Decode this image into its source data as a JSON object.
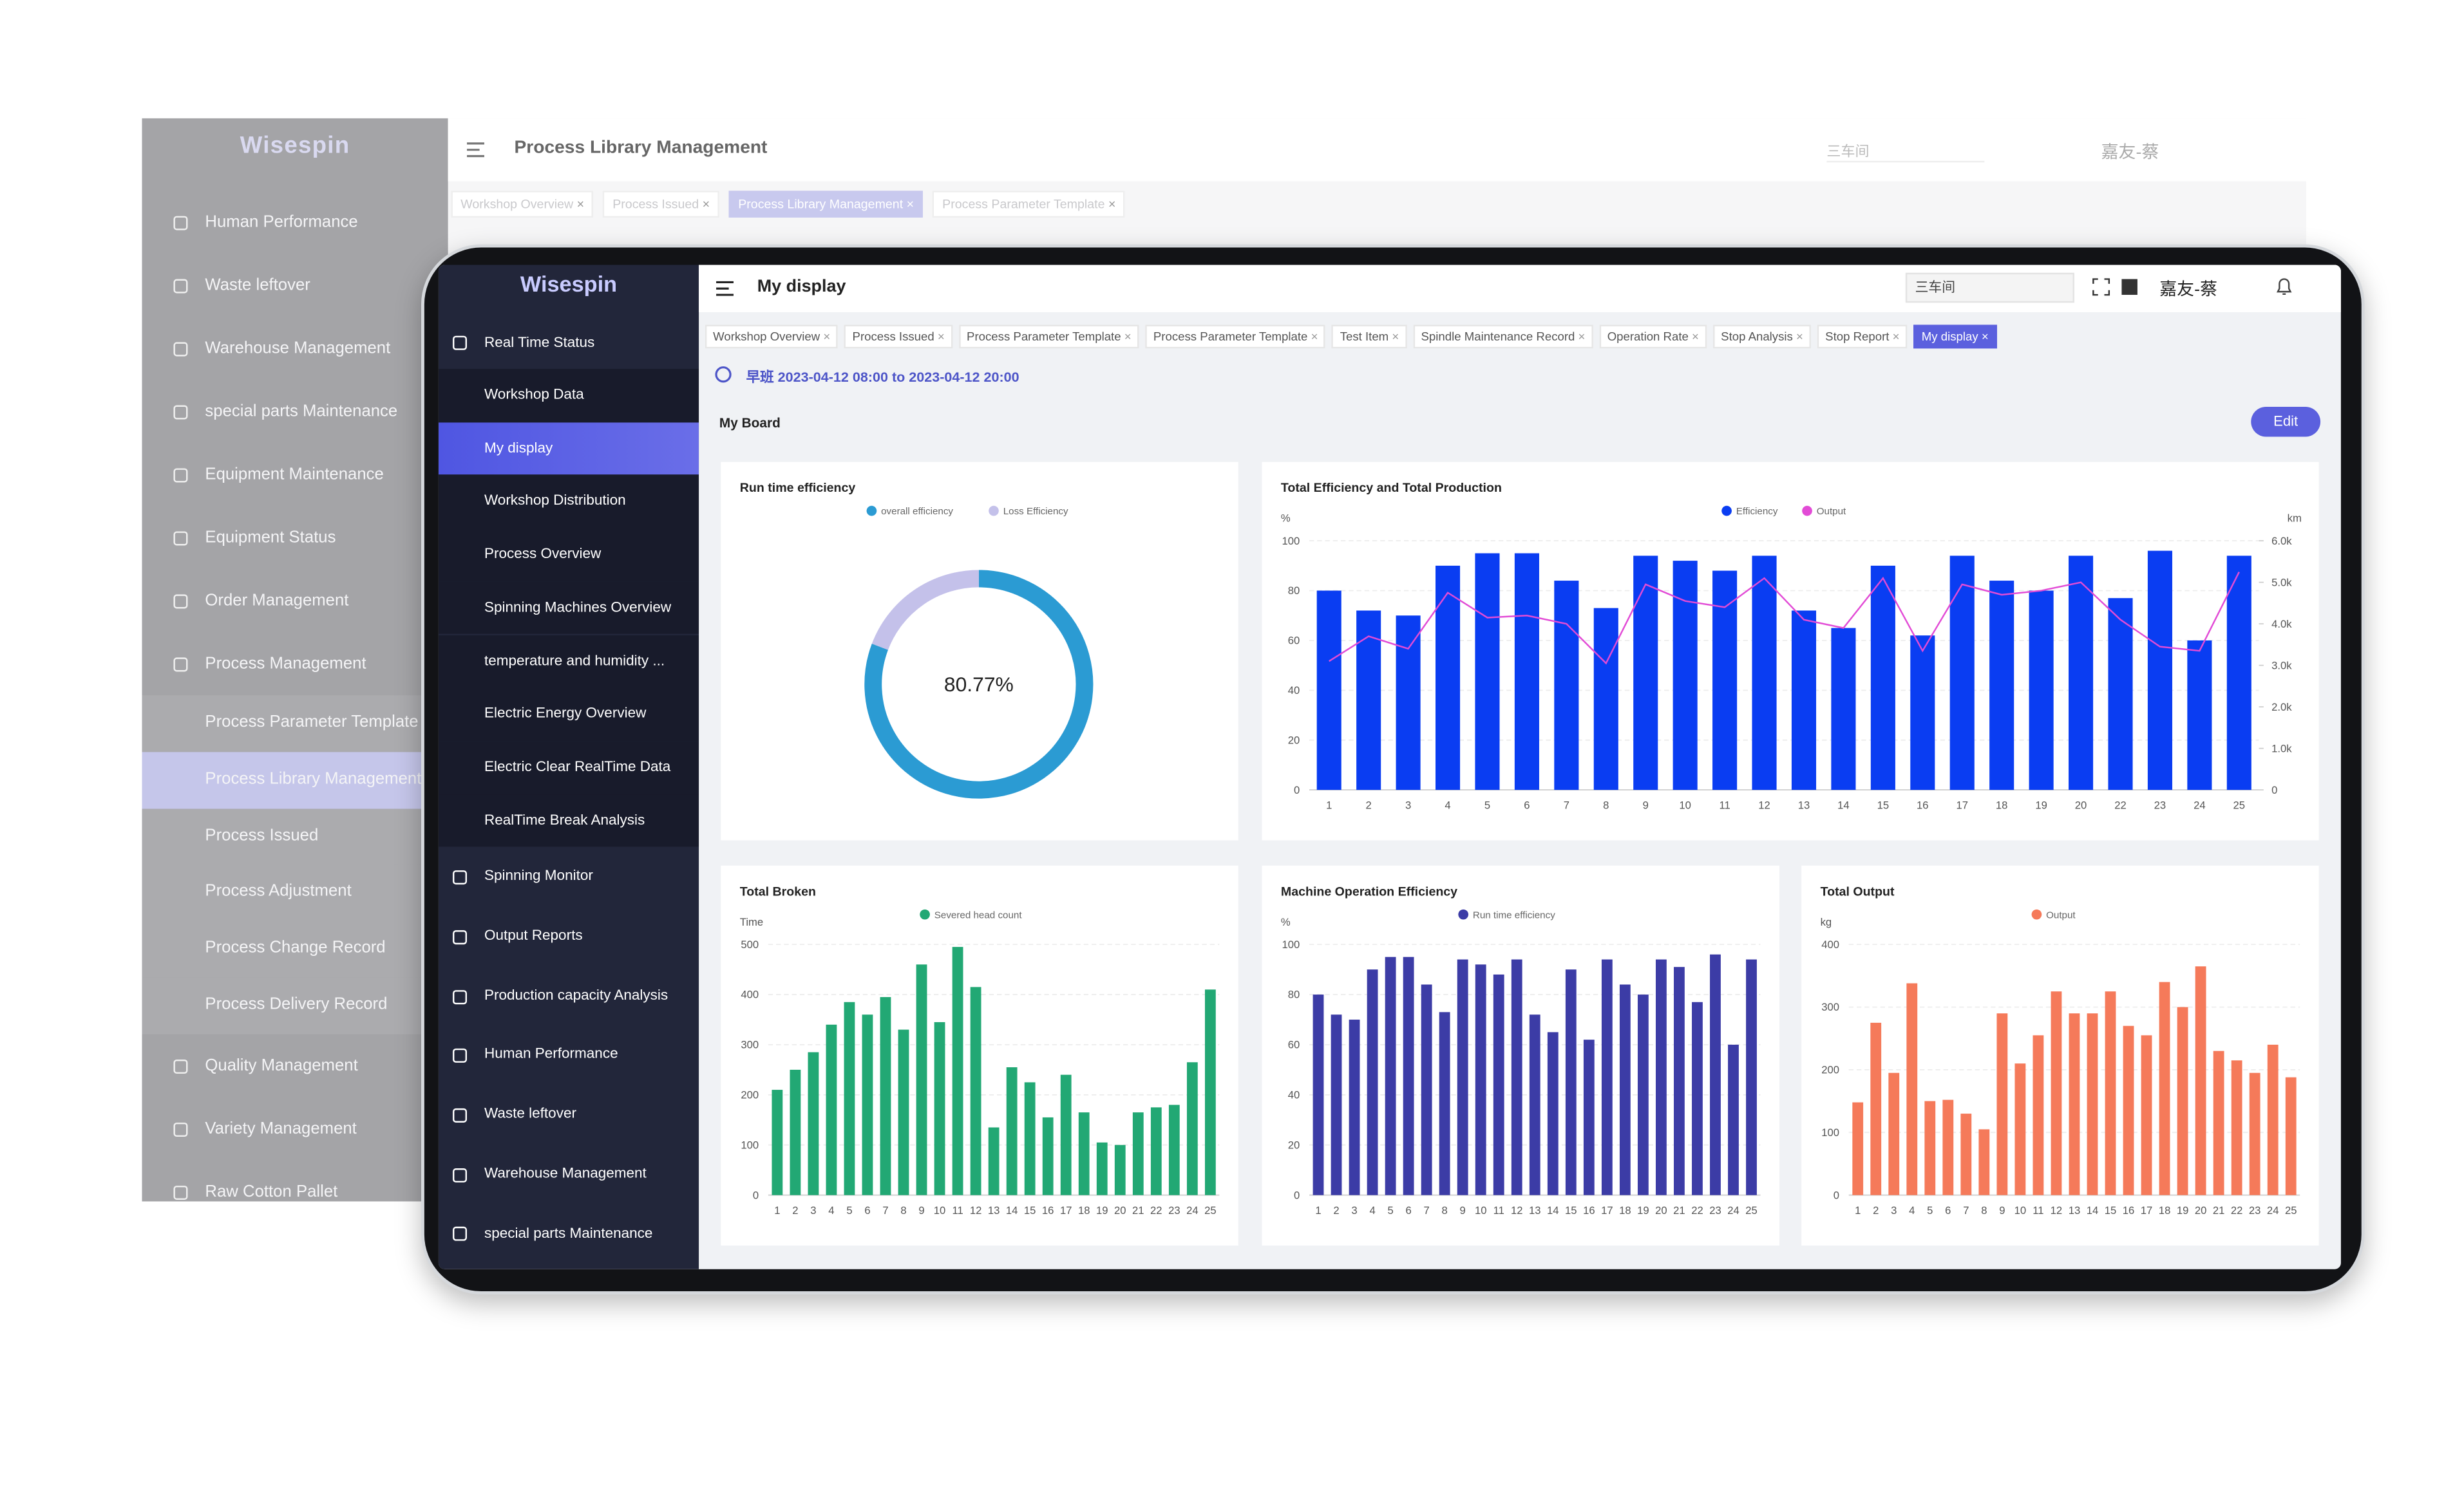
{
  "background_window": {
    "logo": "Wisespin",
    "header_title": "Process Library Management",
    "workshop": "三车间",
    "user": "嘉友-蔡",
    "active_tab": 2,
    "tabs": [
      "Workshop Overview",
      "Process Issued",
      "Process Library Management",
      "Process Parameter Template"
    ],
    "sidebar": [
      {
        "label": "Human Performance"
      },
      {
        "label": "Waste leftover"
      },
      {
        "label": "Warehouse Management"
      },
      {
        "label": "special parts Maintenance"
      },
      {
        "label": "Equipment Maintenance"
      },
      {
        "label": "Equipment Status"
      },
      {
        "label": "Order Management"
      },
      {
        "label": "Process Management",
        "active_child": 1,
        "children": [
          "Process Parameter Template",
          "Process Library Management",
          "Process Issued",
          "Process Adjustment",
          "Process Change Record",
          "Process Delivery Record"
        ]
      },
      {
        "label": "Quality Management"
      },
      {
        "label": "Variety Management"
      },
      {
        "label": "Raw Cotton Pallet"
      }
    ]
  },
  "front_window": {
    "logo": "Wisespin",
    "header_title": "My display",
    "workshop": "三车间",
    "user": "嘉友-蔡",
    "active_tab": 9,
    "tabs": [
      "Workshop Overview",
      "Process Issued",
      "Process Parameter Template",
      "Process Parameter Template",
      "Test Item",
      "Spindle Maintenance Record",
      "Operation Rate",
      "Stop Analysis",
      "Stop Report",
      "My display"
    ],
    "shift": "早班 2023-04-12 08:00 to 2023-04-12 20:00",
    "board_title": "My Board",
    "edit_button": "Edit",
    "sidebar": [
      {
        "label": "Real Time Status",
        "active_child": 1,
        "children": [
          "Workshop Data",
          "My display",
          "Workshop Distribution",
          "Process Overview",
          "Spinning Machines Overview",
          "temperature and humidity ...",
          "Electric Energy Overview",
          "Electric Clear RealTime Data",
          "RealTime Break Analysis"
        ]
      },
      {
        "label": "Spinning Monitor"
      },
      {
        "label": "Output Reports"
      },
      {
        "label": "Production capacity Analysis"
      },
      {
        "label": "Human Performance"
      },
      {
        "label": "Waste leftover"
      },
      {
        "label": "Warehouse Management"
      },
      {
        "label": "special parts Maintenance"
      }
    ],
    "charts": [
      {
        "type": "donut",
        "title": "Run time efficiency",
        "categories": [
          "overall efficiency",
          "Loss Efficiency"
        ],
        "values": [
          80.77,
          19.23
        ],
        "value_labels": [
          "80.77%",
          null
        ],
        "colors": [
          "#2b9bd3",
          "#c4c1ea"
        ]
      },
      {
        "type": "bar",
        "title": "Total Efficiency and Total Production",
        "y_unit": "%",
        "y2_unit": "km",
        "categories": [
          "1",
          "2",
          "3",
          "4",
          "5",
          "6",
          "7",
          "8",
          "9",
          "10",
          "11",
          "12",
          "13",
          "14",
          "15",
          "16",
          "17",
          "18",
          "19",
          "20",
          "22",
          "23",
          "24",
          "25"
        ],
        "series": [
          {
            "name": "Efficiency",
            "color": "#0a3df2",
            "values": [
              80,
              72,
              70,
              90,
              95,
              95,
              84,
              73,
              94,
              92,
              88,
              94,
              72,
              65,
              90,
              62,
              94,
              84,
              80,
              94,
              77,
              96,
              60,
              94
            ]
          },
          {
            "name": "Output",
            "color": "#e24bd6",
            "axis": "y2",
            "type": "line",
            "values": [
              3100,
              3700,
              3400,
              4750,
              4150,
              4200,
              4000,
              3050,
              4950,
              4550,
              4400,
              5100,
              4100,
              3900,
              5100,
              3350,
              4950,
              4700,
              4800,
              5000,
              4100,
              3450,
              3350,
              5250
            ]
          }
        ],
        "ylim": [
          0,
          100
        ],
        "yticks": [
          0,
          20,
          40,
          60,
          80,
          100
        ],
        "y2lim": [
          0,
          6000
        ],
        "y2ticks": [
          0,
          {
            "value": 1000,
            "label": "1.0k"
          },
          {
            "value": 2000,
            "label": "2.0k"
          },
          {
            "value": 3000,
            "label": "3.0k"
          },
          {
            "value": 4000,
            "label": "4.0k"
          },
          {
            "value": 5000,
            "label": "5.0k"
          },
          {
            "value": 6000,
            "label": "6.0k"
          }
        ],
        "grid": true
      },
      {
        "type": "bar",
        "title": "Total Broken",
        "y_unit": "Time",
        "categories": [
          "1",
          "2",
          "3",
          "4",
          "5",
          "6",
          "7",
          "8",
          "9",
          "10",
          "11",
          "12",
          "13",
          "14",
          "15",
          "16",
          "17",
          "18",
          "19",
          "20",
          "21",
          "22",
          "23",
          "24",
          "25"
        ],
        "series": [
          {
            "name": "Severed head count",
            "color": "#22a874",
            "values": [
              210,
              250,
              285,
              340,
              385,
              360,
              395,
              330,
              460,
              345,
              495,
              415,
              135,
              255,
              225,
              155,
              240,
              165,
              105,
              100,
              165,
              175,
              180,
              265,
              410
            ]
          }
        ],
        "ylim": [
          0,
          500
        ],
        "yticks": [
          0,
          100,
          200,
          300,
          400,
          500
        ],
        "grid": true
      },
      {
        "type": "bar",
        "title": "Machine Operation Efficiency",
        "y_unit": "%",
        "categories": [
          "1",
          "2",
          "3",
          "4",
          "5",
          "6",
          "7",
          "8",
          "9",
          "10",
          "11",
          "12",
          "13",
          "14",
          "15",
          "16",
          "17",
          "18",
          "19",
          "20",
          "21",
          "22",
          "23",
          "24",
          "25"
        ],
        "series": [
          {
            "name": "Run time efficiency",
            "color": "#3c3ca6",
            "values": [
              80,
              72,
              70,
              90,
              95,
              95,
              84,
              73,
              94,
              92,
              88,
              94,
              72,
              65,
              90,
              62,
              94,
              84,
              80,
              94,
              91,
              77,
              96,
              60,
              94
            ]
          }
        ],
        "ylim": [
          0,
          100
        ],
        "yticks": [
          0,
          20,
          40,
          60,
          80,
          100
        ],
        "grid": true
      },
      {
        "type": "bar",
        "title": "Total Output",
        "y_unit": "kg",
        "categories": [
          "1",
          "2",
          "3",
          "4",
          "5",
          "6",
          "7",
          "8",
          "9",
          "10",
          "11",
          "12",
          "13",
          "14",
          "15",
          "16",
          "17",
          "18",
          "19",
          "20",
          "21",
          "22",
          "23",
          "24",
          "25"
        ],
        "series": [
          {
            "name": "Output",
            "color": "#f57a5a",
            "values": [
              148,
              275,
              195,
              338,
              150,
              152,
              130,
              105,
              290,
              210,
              255,
              325,
              290,
              290,
              325,
              270,
              255,
              340,
              300,
              365,
              230,
              215,
              195,
              240,
              188
            ]
          }
        ],
        "ylim": [
          0,
          400
        ],
        "yticks": [
          0,
          100,
          200,
          300,
          400
        ],
        "grid": true
      }
    ]
  }
}
